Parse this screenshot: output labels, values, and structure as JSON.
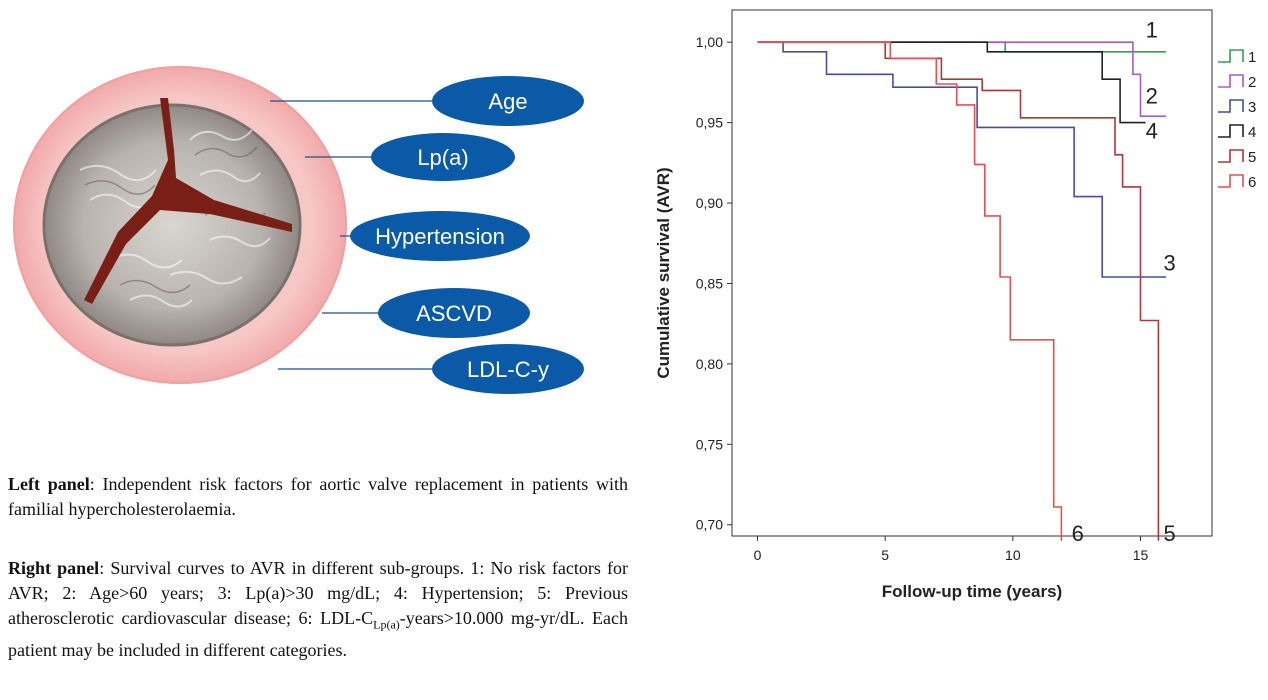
{
  "left_panel": {
    "risk_factors": [
      "Age",
      "Lp(a)",
      "Hypertension",
      "ASCVD",
      "LDL-C-y"
    ],
    "caption_heading": "Left panel",
    "caption_text": ": Independent risk factors for aortic valve replacement in patients with familial hypercholesterolaemia.",
    "colors": {
      "oval": "#0a5aa8",
      "ring": "#f2b3b3",
      "connector": "#1f4e8c"
    }
  },
  "right_panel": {
    "caption_heading": "Right panel",
    "caption_text_1": ": Survival curves to AVR in different sub-groups. 1: No risk factors for AVR; 2: Age>60 years; 3: Lp(a)>30 mg/dL; 4: Hypertension; 5: Previous atherosclerotic cardiovascular disease; 6: LDL-C",
    "caption_sub": "Lp(a)",
    "caption_text_2": "-years>10.000 mg-yr/dL. Each patient may be included in different categories."
  },
  "chart_data": {
    "type": "line",
    "step": true,
    "xlabel": "Follow-up time (years)",
    "ylabel": "Cumulative survival (AVR)",
    "xlim": [
      -1,
      17.8
    ],
    "ylim": [
      0.693,
      1.02
    ],
    "x_ticks": [
      0,
      5,
      10,
      15
    ],
    "x_tick_labels": [
      "0",
      "5",
      "10",
      "15"
    ],
    "y_ticks": [
      0.7,
      0.75,
      0.8,
      0.85,
      0.9,
      0.95,
      1.0
    ],
    "y_tick_labels": [
      "0,70",
      "0,75",
      "0,80",
      "0,85",
      "0,90",
      "0,95",
      "1,00"
    ],
    "legend_position": "right",
    "series": [
      {
        "name": "1",
        "color": "#3a9a5a",
        "label_x": 15.2,
        "label_y": 1.003,
        "x": [
          0,
          9.7,
          16
        ],
        "y": [
          1.0,
          0.994,
          0.994
        ]
      },
      {
        "name": "2",
        "color": "#a85cc8",
        "label_x": 15.2,
        "label_y": 0.962,
        "x": [
          0,
          14.7,
          15.0,
          16
        ],
        "y": [
          1.0,
          0.98,
          0.954,
          0.954
        ]
      },
      {
        "name": "3",
        "color": "#4a4aa8",
        "label_x": 15.9,
        "label_y": 0.858,
        "x": [
          0,
          1.0,
          2.7,
          5.3,
          8.6,
          12.4,
          13.5,
          16
        ],
        "y": [
          1.0,
          0.994,
          0.98,
          0.972,
          0.947,
          0.904,
          0.854,
          0.854
        ]
      },
      {
        "name": "4",
        "color": "#222222",
        "label_x": 15.2,
        "label_y": 0.94,
        "x": [
          0,
          9.0,
          13.5,
          14.2,
          15.2
        ],
        "y": [
          1.0,
          0.994,
          0.977,
          0.95,
          0.95
        ]
      },
      {
        "name": "5",
        "color": "#a83a3a",
        "label_x": 15.9,
        "label_y": 0.69,
        "x": [
          0,
          5.0,
          7.2,
          8.8,
          10.3,
          14.0,
          14.3,
          15.0,
          15.7
        ],
        "y": [
          1.0,
          0.99,
          0.977,
          0.97,
          0.953,
          0.93,
          0.91,
          0.827,
          0.69
        ]
      },
      {
        "name": "6",
        "color": "#e45050",
        "label_x": 12.3,
        "label_y": 0.69,
        "x": [
          0,
          5.2,
          7.0,
          7.8,
          8.5,
          8.9,
          9.5,
          9.9,
          11.6,
          11.9
        ],
        "y": [
          1.0,
          0.99,
          0.974,
          0.961,
          0.924,
          0.892,
          0.854,
          0.815,
          0.711,
          0.69
        ]
      }
    ]
  }
}
